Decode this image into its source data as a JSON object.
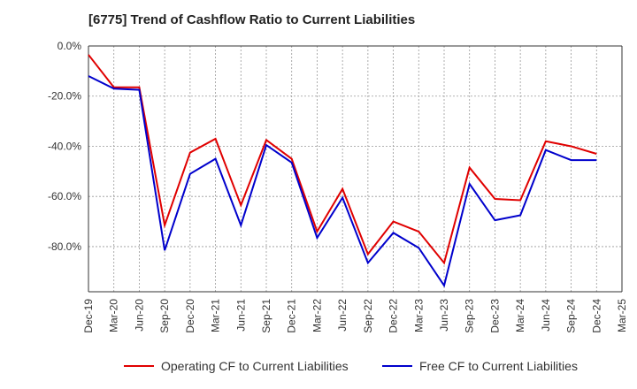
{
  "title": "[6775]  Trend of Cashflow Ratio to Current Liabilities",
  "legend": {
    "items": [
      {
        "label": "Operating CF to Current Liabilities",
        "color": "#e00000"
      },
      {
        "label": "Free CF to Current Liabilities",
        "color": "#0000cc"
      }
    ]
  },
  "chart_data": {
    "type": "line",
    "x": [
      "Dec-19",
      "Mar-20",
      "Jun-20",
      "Sep-20",
      "Dec-20",
      "Mar-21",
      "Jun-21",
      "Sep-21",
      "Dec-21",
      "Mar-22",
      "Jun-22",
      "Sep-22",
      "Dec-22",
      "Mar-23",
      "Jun-23",
      "Sep-23",
      "Dec-23",
      "Mar-24",
      "Jun-24",
      "Sep-24",
      "Dec-24",
      "Mar-25"
    ],
    "y_ticks": [
      "0.0%",
      "-20.0%",
      "-40.0%",
      "-60.0%",
      "-80.0%"
    ],
    "ylim": [
      -98,
      0
    ],
    "grid": true,
    "legend_position": "bottom",
    "series": [
      {
        "name": "Operating CF to Current Liabilities",
        "color": "#e00000",
        "values": [
          -3.5,
          -16.5,
          -16.5,
          -71.5,
          -42.5,
          -37.0,
          -63.5,
          -37.5,
          -45.0,
          -74.0,
          -57.0,
          -83.0,
          -70.0,
          -74.0,
          -86.5,
          -48.5,
          -61.0,
          -61.5,
          -38.0,
          -40.0,
          -43.0,
          null
        ]
      },
      {
        "name": "Free CF to Current Liabilities",
        "color": "#0000cc",
        "values": [
          -12.0,
          -17.0,
          -17.5,
          -81.5,
          -51.0,
          -45.0,
          -71.5,
          -39.5,
          -46.5,
          -76.5,
          -60.5,
          -86.5,
          -74.5,
          -80.5,
          -95.5,
          -55.0,
          -69.5,
          -67.5,
          -41.5,
          -45.5,
          -45.5,
          null
        ]
      }
    ]
  }
}
